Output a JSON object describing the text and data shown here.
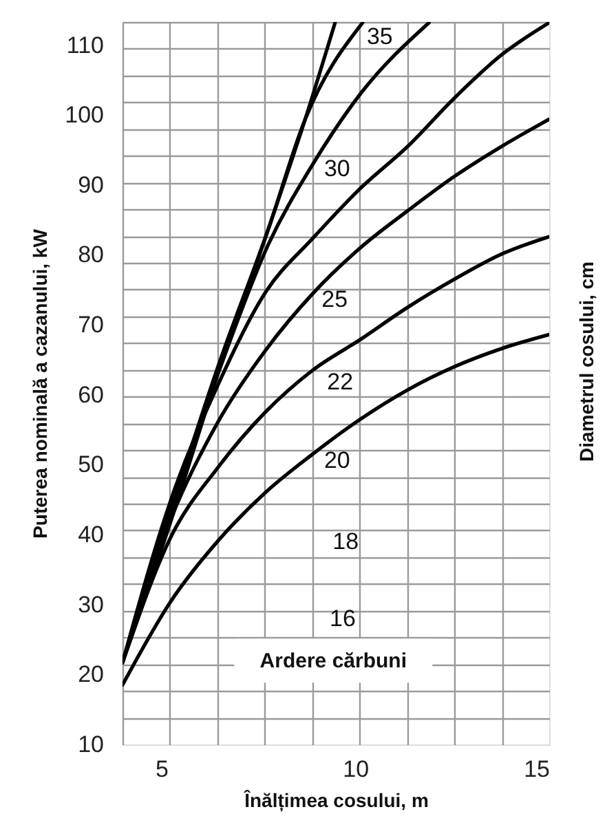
{
  "chart_data": {
    "type": "line",
    "xlabel": "Înălțimea cosului, m",
    "ylabel": "Puterea nominală a cazanului, kW",
    "y2label": "Diametrul cosului, cm",
    "xlim": [
      4,
      15
    ],
    "ylim": [
      10,
      113.3
    ],
    "xticks": [
      {
        "value": 4,
        "label": null
      },
      5,
      {
        "value": 5.22,
        "label": null
      },
      {
        "value": 6.44,
        "label": null
      },
      {
        "value": 7.67,
        "label": null
      },
      {
        "value": 8.89,
        "label": null
      },
      10,
      {
        "value": 10.11,
        "label": null
      },
      {
        "value": 11.33,
        "label": null
      },
      {
        "value": 12.56,
        "label": null
      },
      {
        "value": 13.78,
        "label": null
      },
      15
    ],
    "yticks": [
      10,
      {
        "value": 13.83,
        "label": null
      },
      {
        "value": 17.65,
        "label": null
      },
      20,
      {
        "value": 21.48,
        "label": null
      },
      {
        "value": 25.3,
        "label": null
      },
      {
        "value": 29.13,
        "label": null
      },
      30,
      {
        "value": 32.96,
        "label": null
      },
      {
        "value": 36.78,
        "label": null
      },
      40,
      {
        "value": 40.61,
        "label": null
      },
      {
        "value": 44.43,
        "label": null
      },
      {
        "value": 48.26,
        "label": null
      },
      50,
      {
        "value": 52.09,
        "label": null
      },
      {
        "value": 55.91,
        "label": null
      },
      {
        "value": 59.74,
        "label": null
      },
      60,
      {
        "value": 63.57,
        "label": null
      },
      {
        "value": 67.39,
        "label": null
      },
      70,
      {
        "value": 71.22,
        "label": null
      },
      {
        "value": 75.04,
        "label": null
      },
      {
        "value": 78.87,
        "label": null
      },
      80,
      {
        "value": 82.7,
        "label": null
      },
      {
        "value": 86.52,
        "label": null
      },
      90,
      {
        "value": 90.35,
        "label": null
      },
      {
        "value": 94.17,
        "label": null
      },
      {
        "value": 98.0,
        "label": null
      },
      100,
      {
        "value": 101.83,
        "label": null
      },
      {
        "value": 105.65,
        "label": null
      },
      {
        "value": 109.48,
        "label": null
      },
      110,
      {
        "value": 113.3,
        "label": null
      }
    ],
    "grid": true,
    "marker": "none",
    "line_style": "solid",
    "series": [
      {
        "color": "#000000",
        "x": [
          4,
          5.25,
          6.46,
          7.76,
          8.71,
          9.48
        ],
        "values": [
          21.7,
          42,
          63,
          83.7,
          99.4,
          113.2
        ]
      },
      {
        "color": "#000000",
        "x": [
          4,
          5.25,
          6.46,
          7.76,
          8.71,
          10.19
        ],
        "values": [
          21.7,
          43.5,
          64,
          83.7,
          99.4,
          113.2
        ]
      },
      {
        "color": "#000000",
        "x": [
          4,
          5.25,
          6.46,
          7.76,
          8.91,
          10.13,
          11.9
        ],
        "values": [
          21.7,
          44,
          63,
          81.5,
          93,
          103,
          113.2
        ]
      },
      {
        "color": "#000000",
        "x": [
          4,
          5.25,
          6.46,
          7.68,
          8.91,
          10.13,
          11.35,
          12.55,
          13.77,
          15
        ],
        "values": [
          21.7,
          45,
          61.4,
          74.6,
          82.4,
          89.5,
          95.5,
          102.4,
          108.6,
          113.2
        ]
      },
      {
        "color": "#000000",
        "x": [
          4,
          5.25,
          6.46,
          7.68,
          8.91,
          10.13,
          11.35,
          12.55,
          13.77,
          15
        ],
        "values": [
          21.7,
          42.3,
          56.1,
          66.3,
          74.5,
          81,
          86.3,
          91.2,
          95.5,
          99.4
        ]
      },
      {
        "color": "#000000",
        "x": [
          4,
          5.25,
          6.46,
          7.68,
          8.9,
          10.13,
          11.35,
          12.55,
          13.77,
          15
        ],
        "values": [
          21.7,
          39.7,
          49.6,
          57.5,
          63.5,
          67.9,
          72.5,
          76.5,
          80.1,
          82.6
        ]
      },
      {
        "color": "#000000",
        "x": [
          4,
          5.25,
          6.46,
          7.68,
          8.9,
          10.13,
          11.35,
          12.55,
          13.77,
          15
        ],
        "values": [
          18.5,
          30.5,
          39.1,
          46,
          51.5,
          56.5,
          60.7,
          64,
          66.6,
          68.6
        ]
      }
    ],
    "annotations": [
      "35",
      "30",
      "25",
      "22",
      "20",
      "18",
      "16",
      "Ardere cărbuni"
    ]
  }
}
